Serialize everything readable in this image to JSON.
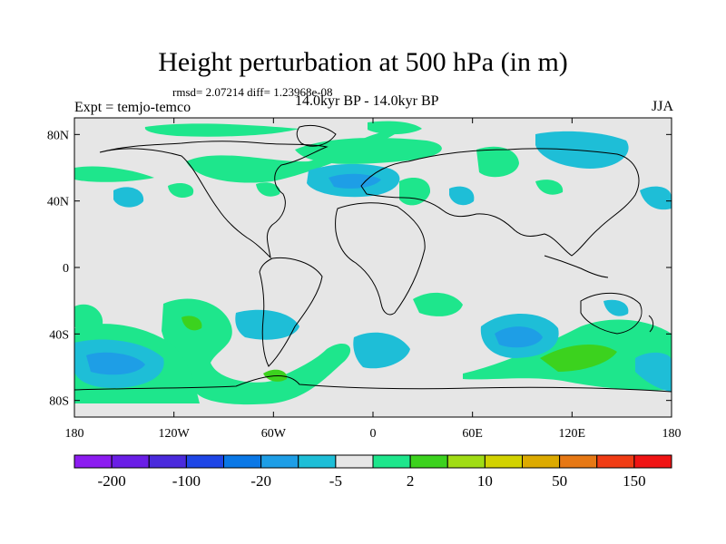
{
  "title": "Height perturbation at 500 hPa (in m)",
  "stats": "rmsd= 2.07214 diff= 1.23968e-08",
  "experiment": "Expt = temjo-temco",
  "period": "14.0kyr BP - 14.0kyr BP",
  "season": "JJA",
  "axes": {
    "lat_ticks": [
      {
        "value": 80,
        "label": "80N"
      },
      {
        "value": 40,
        "label": "40N"
      },
      {
        "value": 0,
        "label": "0"
      },
      {
        "value": -40,
        "label": "40S"
      },
      {
        "value": -80,
        "label": "80S"
      }
    ],
    "lon_ticks": [
      {
        "value": -180,
        "label": "180"
      },
      {
        "value": -120,
        "label": "120W"
      },
      {
        "value": -60,
        "label": "60W"
      },
      {
        "value": 0,
        "label": "0"
      },
      {
        "value": 60,
        "label": "60E"
      },
      {
        "value": 120,
        "label": "120E"
      },
      {
        "value": 180,
        "label": "180"
      }
    ],
    "lat_range": [
      -90,
      90
    ],
    "lon_range": [
      -180,
      180
    ]
  },
  "colorbar": {
    "colors": [
      "#8c1cf0",
      "#6a1ee6",
      "#4a2adc",
      "#1e46e6",
      "#0a78e6",
      "#1e9ee6",
      "#1ebed7",
      "#e6e6e6",
      "#1ee68c",
      "#3cd21e",
      "#a0dc14",
      "#d2d200",
      "#dcaa00",
      "#e67814",
      "#f03c14",
      "#f01414"
    ],
    "labels": [
      "-200",
      "-100",
      "-20",
      "-5",
      "2",
      "10",
      "50",
      "150"
    ],
    "background": "#e6e6e6"
  }
}
